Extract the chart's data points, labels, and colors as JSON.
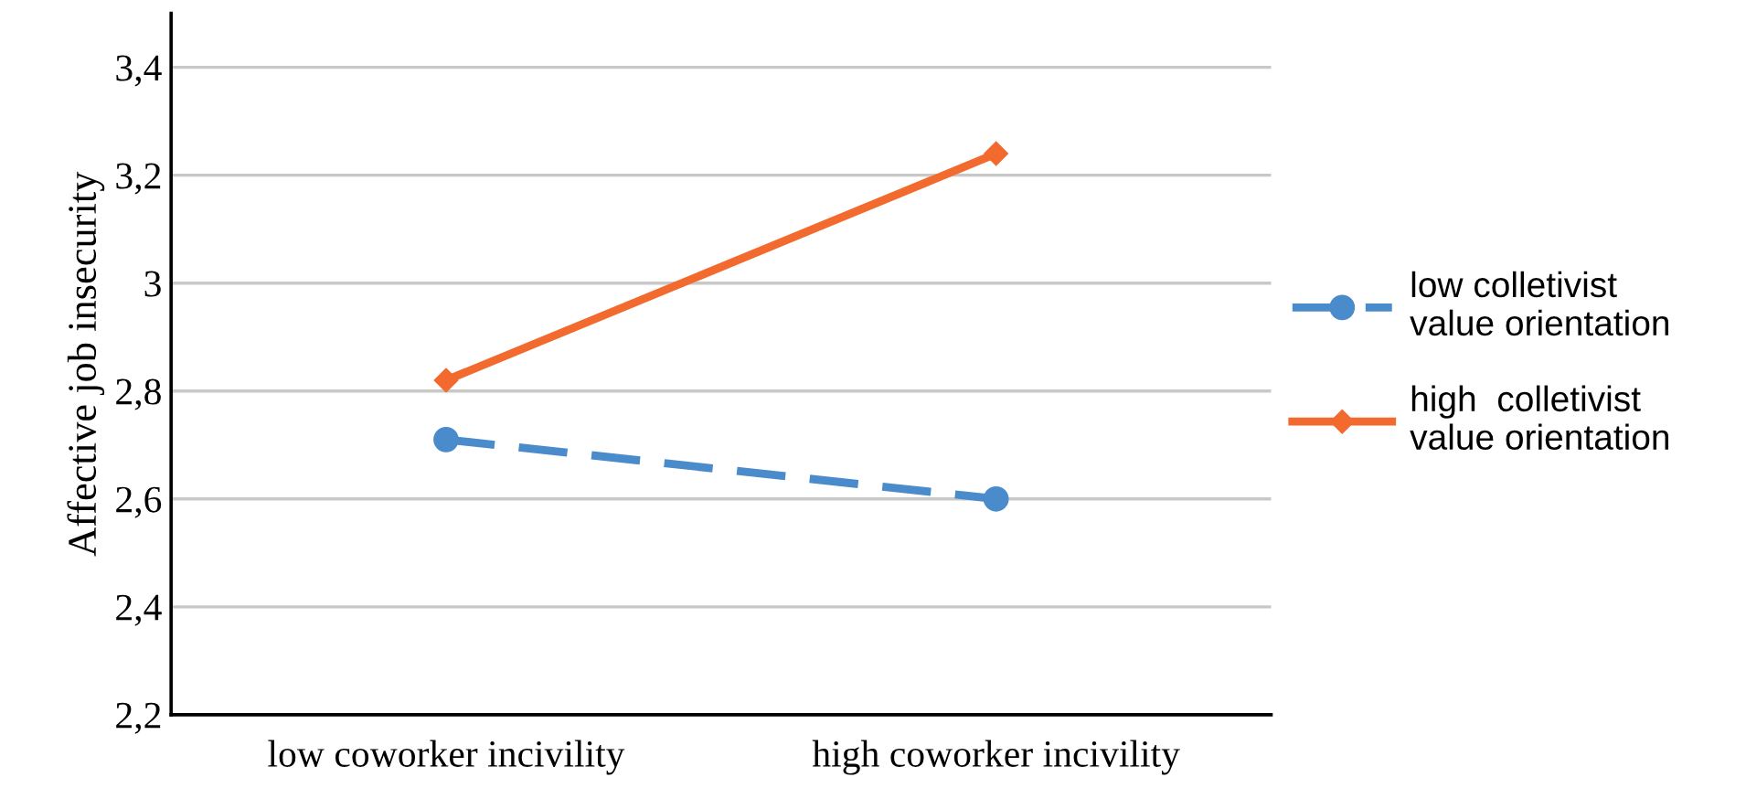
{
  "chart_data": {
    "type": "line",
    "ylabel": "Affective job insecurity",
    "categories": [
      "low coworker incivility",
      "high coworker incivility"
    ],
    "series": [
      {
        "name": "low colletivist\nvalue orientation",
        "color": "#4a8bcc",
        "values": [
          2.71,
          2.6
        ],
        "marker": "circle",
        "line_style": "dashed"
      },
      {
        "name": "high  colletivist\nvalue orientation",
        "color": "#f26a2e",
        "values": [
          2.82,
          3.24
        ],
        "marker": "diamond",
        "line_style": "solid"
      }
    ],
    "ylim": [
      2.2,
      3.5
    ],
    "yticks": [
      {
        "value": 2.2,
        "label": "2,2"
      },
      {
        "value": 2.4,
        "label": "2,4"
      },
      {
        "value": 2.6,
        "label": "2,6"
      },
      {
        "value": 2.8,
        "label": "2,8"
      },
      {
        "value": 3,
        "label": "3"
      },
      {
        "value": 3.2,
        "label": "3,2"
      },
      {
        "value": 3.4,
        "label": "3,4"
      }
    ],
    "grid": "y",
    "legend": "right"
  }
}
